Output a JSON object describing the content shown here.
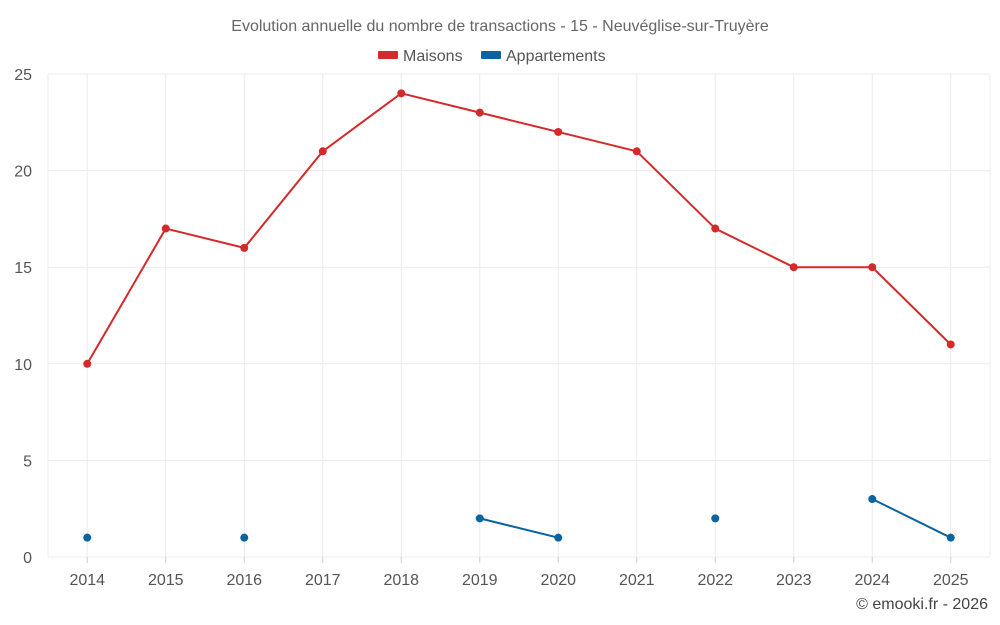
{
  "chart_data": {
    "type": "line",
    "title": "Evolution annuelle du nombre de transactions - 15 - Neuvéglise-sur-Truyère",
    "xlabel": "",
    "ylabel": "",
    "categories": [
      "2014",
      "2015",
      "2016",
      "2017",
      "2018",
      "2019",
      "2020",
      "2021",
      "2022",
      "2023",
      "2024",
      "2025"
    ],
    "ylim": [
      0,
      25
    ],
    "yticks": [
      0,
      5,
      10,
      15,
      20,
      25
    ],
    "grid": true,
    "legend_position": "top-center",
    "series": [
      {
        "name": "Maisons",
        "color": "#d42a2a",
        "values": [
          10,
          17,
          16,
          21,
          24,
          23,
          22,
          21,
          17,
          15,
          15,
          11
        ]
      },
      {
        "name": "Appartements",
        "color": "#0b64a0",
        "values": [
          1,
          null,
          1,
          null,
          null,
          2,
          1,
          null,
          2,
          null,
          3,
          1
        ]
      }
    ]
  },
  "credit": "© emooki.fr - 2026"
}
